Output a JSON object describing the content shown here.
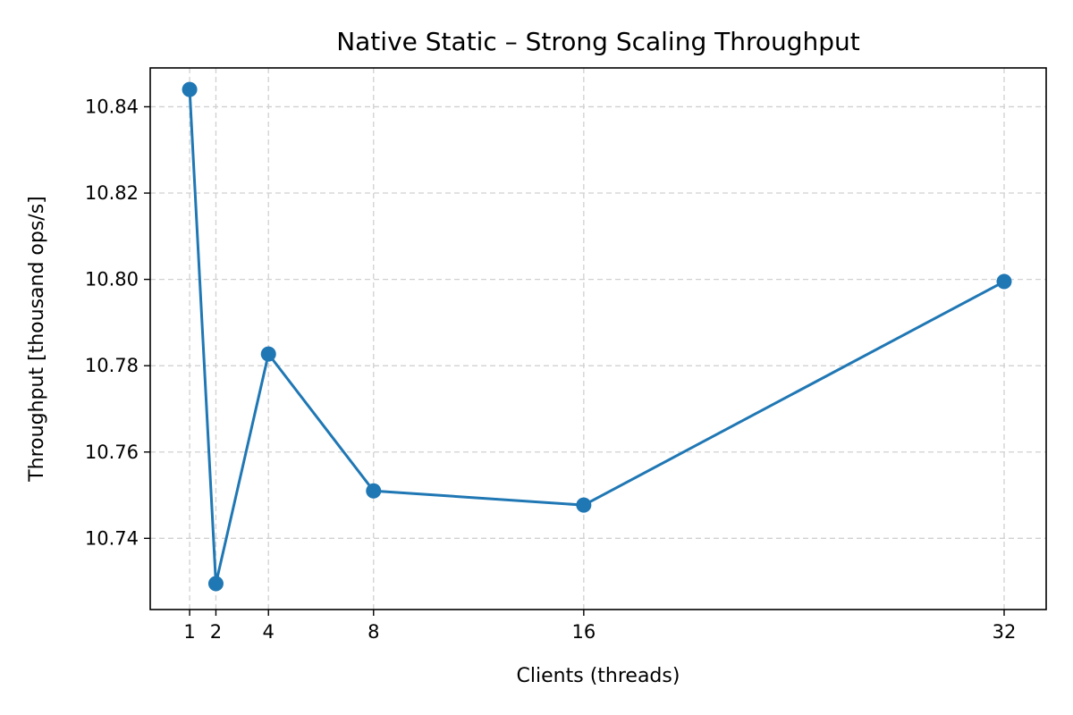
{
  "chart_data": {
    "type": "line",
    "title": "Native Static – Strong Scaling Throughput",
    "xlabel": "Clients (threads)",
    "ylabel": "Throughput [thousand ops/s]",
    "x": [
      1,
      2,
      4,
      8,
      16,
      32
    ],
    "x_tick_labels": [
      "1",
      "2",
      "4",
      "8",
      "16",
      "32"
    ],
    "series": [
      {
        "values": [
          10.844,
          10.7295,
          10.7827,
          10.751,
          10.7477,
          10.7995
        ]
      }
    ],
    "xlim": [
      -0.5,
      33.6
    ],
    "ylim": [
      10.7235,
      10.849
    ],
    "y_ticks": [
      10.74,
      10.76,
      10.78,
      10.8,
      10.82,
      10.84
    ],
    "y_tick_labels": [
      "10.74",
      "10.76",
      "10.78",
      "10.80",
      "10.82",
      "10.84"
    ],
    "grid": true,
    "color": "#1f77b4",
    "marker": "circle"
  }
}
